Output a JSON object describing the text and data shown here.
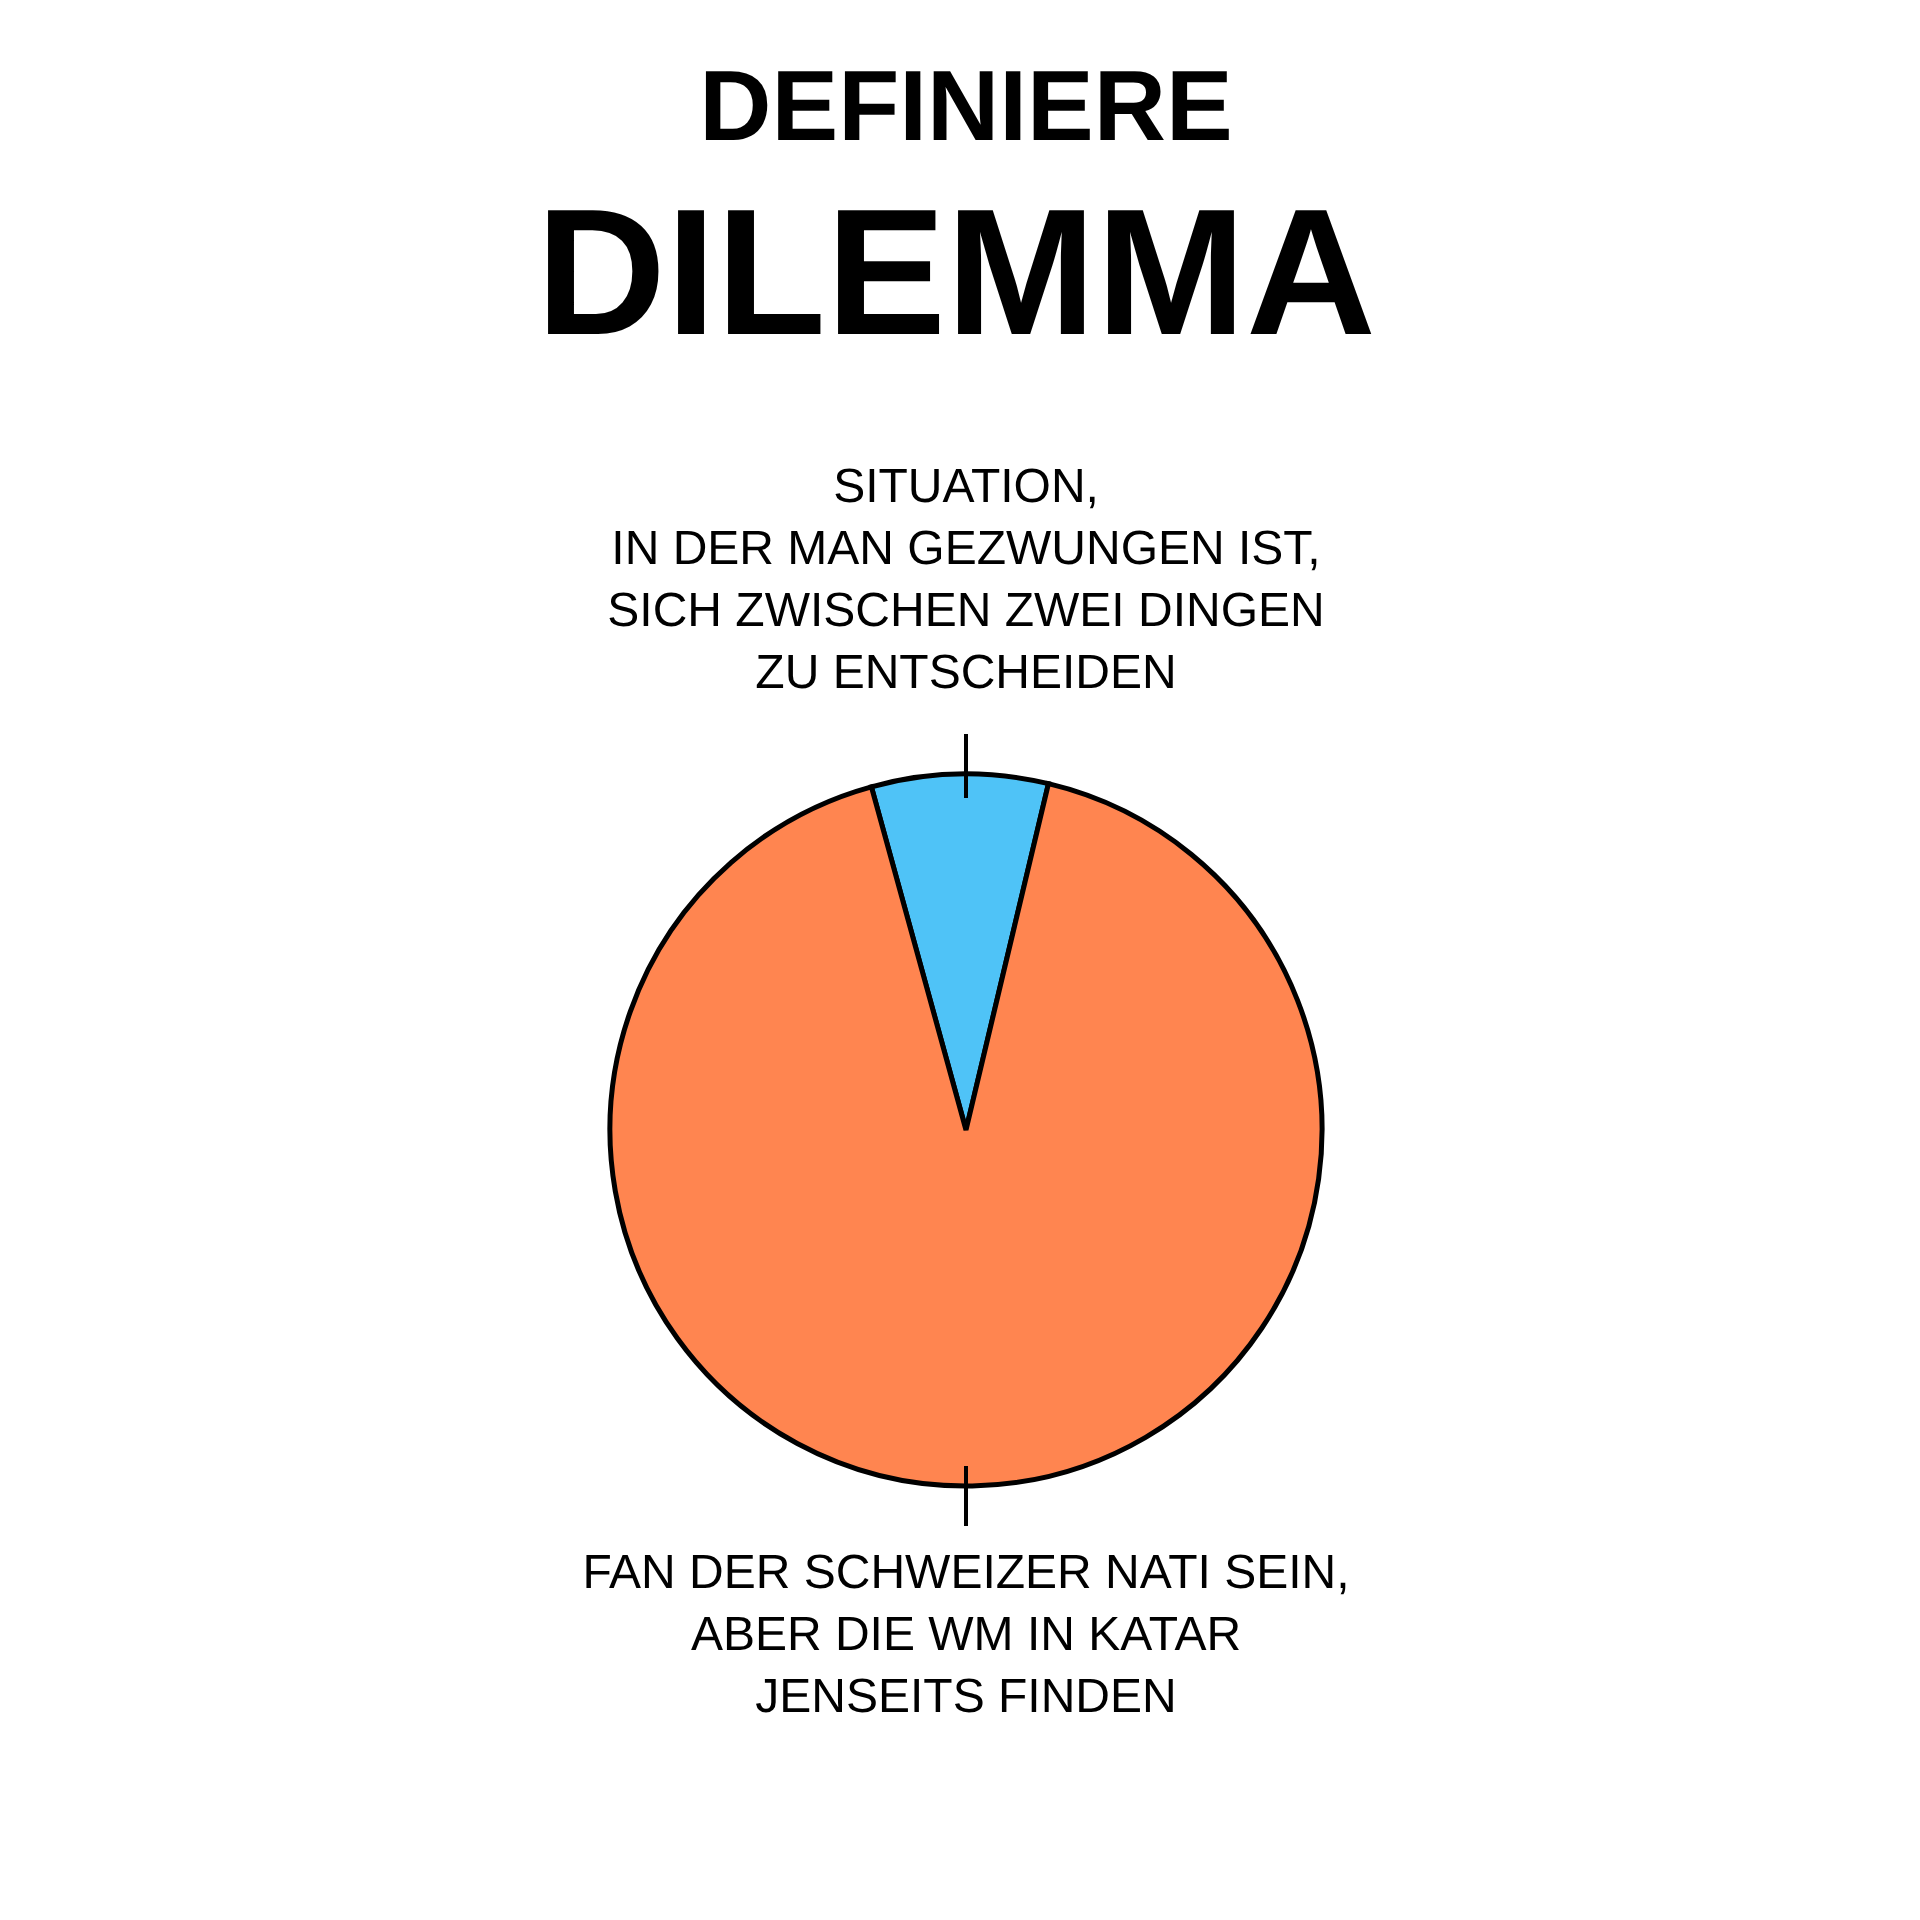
{
  "chart_data": {
    "type": "pie",
    "title": "DEFINIERE",
    "subtitle": "DILEMMA",
    "categories": [
      "SITUATION,\nIN DER MAN GEZWUNGEN IST,\nSICH ZWISCHEN ZWEI DINGEN\nZU ENTSCHEIDEN",
      "FAN DER SCHWEIZER NATI SEIN,\nABER DIE WM IN KATAR\nJENSEITS FINDEN"
    ],
    "values": [
      8,
      92
    ],
    "colors": [
      "#4fc3f7",
      "#ff8550"
    ]
  }
}
